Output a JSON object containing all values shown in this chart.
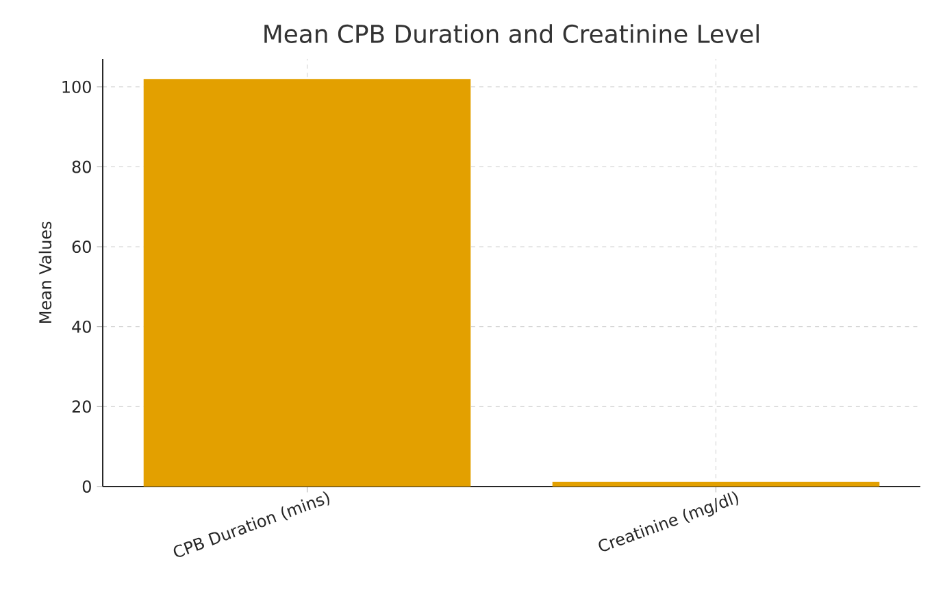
{
  "chart_data": {
    "type": "bar",
    "title": "Mean CPB Duration and Creatinine Level",
    "ylabel": "Mean Values",
    "categories": [
      "CPB Duration (mins)",
      "Creatinine (mg/dl)"
    ],
    "values": [
      102,
      1.2
    ],
    "color": "#e3a000",
    "ylim": [
      0,
      107
    ],
    "yticks": [
      0,
      20,
      40,
      60,
      80,
      100
    ],
    "grid": true
  }
}
